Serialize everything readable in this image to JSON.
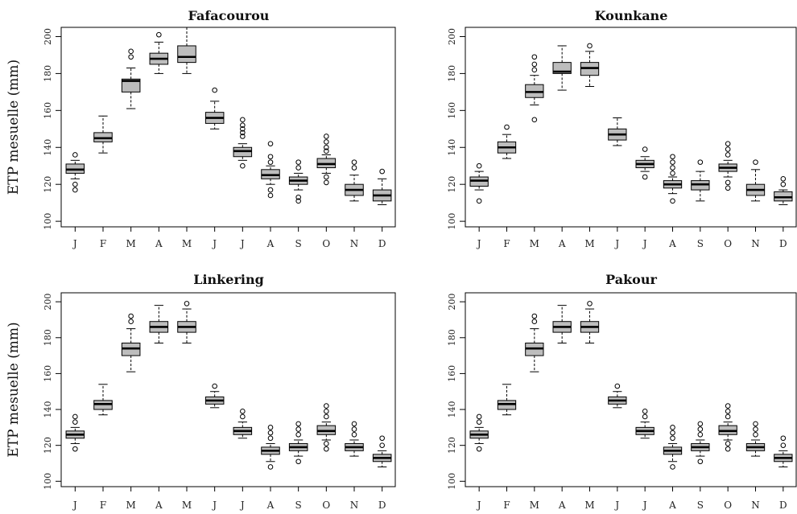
{
  "chart_data": [
    {
      "type": "box",
      "title": "Fafacourou",
      "ylabel": "ETP mesuelle (mm)",
      "ylim": [
        97,
        205
      ],
      "yticks": [
        100,
        120,
        140,
        160,
        180,
        200
      ],
      "categories": [
        "J",
        "F",
        "M",
        "A",
        "M",
        "J",
        "J",
        "A",
        "S",
        "O",
        "N",
        "D"
      ],
      "boxes": [
        {
          "whislo": 123,
          "q1": 126,
          "med": 128,
          "q3": 131,
          "whishi": 133,
          "fliers": [
            117,
            120,
            136
          ]
        },
        {
          "whislo": 137,
          "q1": 143,
          "med": 145,
          "q3": 148,
          "whishi": 157,
          "fliers": []
        },
        {
          "whislo": 161,
          "q1": 170,
          "med": 176,
          "q3": 177,
          "whishi": 183,
          "fliers": [
            189,
            192
          ]
        },
        {
          "whislo": 180,
          "q1": 185,
          "med": 188,
          "q3": 191,
          "whishi": 197,
          "fliers": [
            201
          ]
        },
        {
          "whislo": 180,
          "q1": 186,
          "med": 189,
          "q3": 195,
          "whishi": 205,
          "fliers": []
        },
        {
          "whislo": 150,
          "q1": 153,
          "med": 156,
          "q3": 159,
          "whishi": 165,
          "fliers": [
            171
          ]
        },
        {
          "whislo": 133,
          "q1": 135,
          "med": 138,
          "q3": 140,
          "whishi": 142,
          "fliers": [
            130,
            146,
            148,
            150,
            152,
            155
          ]
        },
        {
          "whislo": 120,
          "q1": 123,
          "med": 125,
          "q3": 128,
          "whishi": 130,
          "fliers": [
            114,
            117,
            132,
            135,
            142
          ]
        },
        {
          "whislo": 117,
          "q1": 120,
          "med": 122,
          "q3": 124,
          "whishi": 126,
          "fliers": [
            111,
            113,
            129,
            132
          ]
        },
        {
          "whislo": 126,
          "q1": 129,
          "med": 131,
          "q3": 134,
          "whishi": 136,
          "fliers": [
            121,
            124,
            138,
            140,
            143,
            146
          ]
        },
        {
          "whislo": 111,
          "q1": 114,
          "med": 117,
          "q3": 120,
          "whishi": 125,
          "fliers": [
            129,
            132
          ]
        },
        {
          "whislo": 109,
          "q1": 111,
          "med": 114,
          "q3": 117,
          "whishi": 123,
          "fliers": [
            127
          ]
        }
      ]
    },
    {
      "type": "box",
      "title": "Kounkane",
      "ylabel": "",
      "ylim": [
        97,
        205
      ],
      "yticks": [
        100,
        120,
        140,
        160,
        180,
        200
      ],
      "categories": [
        "J",
        "F",
        "M",
        "A",
        "M",
        "J",
        "J",
        "A",
        "S",
        "O",
        "N",
        "D"
      ],
      "boxes": [
        {
          "whislo": 117,
          "q1": 119,
          "med": 122,
          "q3": 124,
          "whishi": 127,
          "fliers": [
            111,
            130
          ]
        },
        {
          "whislo": 134,
          "q1": 137,
          "med": 140,
          "q3": 143,
          "whishi": 147,
          "fliers": [
            151
          ]
        },
        {
          "whislo": 163,
          "q1": 167,
          "med": 170,
          "q3": 174,
          "whishi": 179,
          "fliers": [
            155,
            182,
            185,
            189
          ]
        },
        {
          "whislo": 171,
          "q1": 180,
          "med": 181,
          "q3": 186,
          "whishi": 195,
          "fliers": []
        },
        {
          "whislo": 173,
          "q1": 179,
          "med": 183,
          "q3": 186,
          "whishi": 192,
          "fliers": [
            195
          ]
        },
        {
          "whislo": 141,
          "q1": 144,
          "med": 147,
          "q3": 150,
          "whishi": 156,
          "fliers": []
        },
        {
          "whislo": 127,
          "q1": 129,
          "med": 131,
          "q3": 133,
          "whishi": 135,
          "fliers": [
            124,
            139
          ]
        },
        {
          "whislo": 115,
          "q1": 118,
          "med": 120,
          "q3": 122,
          "whishi": 124,
          "fliers": [
            111,
            126,
            129,
            132,
            135
          ]
        },
        {
          "whislo": 111,
          "q1": 117,
          "med": 120,
          "q3": 122,
          "whishi": 127,
          "fliers": [
            132
          ]
        },
        {
          "whislo": 124,
          "q1": 127,
          "med": 129,
          "q3": 131,
          "whishi": 133,
          "fliers": [
            118,
            121,
            136,
            139,
            142
          ]
        },
        {
          "whislo": 111,
          "q1": 114,
          "med": 117,
          "q3": 120,
          "whishi": 128,
          "fliers": [
            132
          ]
        },
        {
          "whislo": 109,
          "q1": 111,
          "med": 113,
          "q3": 116,
          "whishi": 117,
          "fliers": [
            120,
            123
          ]
        }
      ]
    },
    {
      "type": "box",
      "title": "Linkering",
      "ylabel": "ETP mesuelle (mm)",
      "ylim": [
        97,
        205
      ],
      "yticks": [
        100,
        120,
        140,
        160,
        180,
        200
      ],
      "categories": [
        "J",
        "F",
        "M",
        "A",
        "M",
        "J",
        "J",
        "A",
        "S",
        "O",
        "N",
        "D"
      ],
      "boxes": [
        {
          "whislo": 121,
          "q1": 124,
          "med": 126,
          "q3": 128,
          "whishi": 130,
          "fliers": [
            118,
            133,
            136
          ]
        },
        {
          "whislo": 137,
          "q1": 140,
          "med": 143,
          "q3": 145,
          "whishi": 154,
          "fliers": []
        },
        {
          "whislo": 161,
          "q1": 170,
          "med": 174,
          "q3": 177,
          "whishi": 185,
          "fliers": [
            189,
            192
          ]
        },
        {
          "whislo": 177,
          "q1": 183,
          "med": 186,
          "q3": 189,
          "whishi": 198,
          "fliers": []
        },
        {
          "whislo": 177,
          "q1": 183,
          "med": 186,
          "q3": 189,
          "whishi": 196,
          "fliers": [
            199
          ]
        },
        {
          "whislo": 141,
          "q1": 143,
          "med": 145,
          "q3": 147,
          "whishi": 150,
          "fliers": [
            153
          ]
        },
        {
          "whislo": 124,
          "q1": 126,
          "med": 128,
          "q3": 130,
          "whishi": 133,
          "fliers": [
            136,
            139
          ]
        },
        {
          "whislo": 111,
          "q1": 115,
          "med": 117,
          "q3": 119,
          "whishi": 121,
          "fliers": [
            108,
            124,
            127,
            130
          ]
        },
        {
          "whislo": 114,
          "q1": 117,
          "med": 119,
          "q3": 121,
          "whishi": 123,
          "fliers": [
            111,
            126,
            129,
            132
          ]
        },
        {
          "whislo": 123,
          "q1": 126,
          "med": 128,
          "q3": 131,
          "whishi": 133,
          "fliers": [
            118,
            121,
            136,
            139,
            142
          ]
        },
        {
          "whislo": 114,
          "q1": 117,
          "med": 119,
          "q3": 121,
          "whishi": 123,
          "fliers": [
            126,
            129,
            132
          ]
        },
        {
          "whislo": 108,
          "q1": 111,
          "med": 113,
          "q3": 115,
          "whishi": 117,
          "fliers": [
            120,
            124
          ]
        }
      ]
    },
    {
      "type": "box",
      "title": "Pakour",
      "ylabel": "",
      "ylim": [
        97,
        205
      ],
      "yticks": [
        100,
        120,
        140,
        160,
        180,
        200
      ],
      "categories": [
        "J",
        "F",
        "M",
        "A",
        "M",
        "J",
        "J",
        "A",
        "S",
        "O",
        "N",
        "D"
      ],
      "boxes": [
        {
          "whislo": 121,
          "q1": 124,
          "med": 126,
          "q3": 128,
          "whishi": 130,
          "fliers": [
            118,
            133,
            136
          ]
        },
        {
          "whislo": 137,
          "q1": 140,
          "med": 143,
          "q3": 145,
          "whishi": 154,
          "fliers": []
        },
        {
          "whislo": 161,
          "q1": 170,
          "med": 174,
          "q3": 177,
          "whishi": 185,
          "fliers": [
            189,
            192
          ]
        },
        {
          "whislo": 177,
          "q1": 183,
          "med": 186,
          "q3": 189,
          "whishi": 198,
          "fliers": []
        },
        {
          "whislo": 177,
          "q1": 183,
          "med": 186,
          "q3": 189,
          "whishi": 196,
          "fliers": [
            199
          ]
        },
        {
          "whislo": 141,
          "q1": 143,
          "med": 145,
          "q3": 147,
          "whishi": 150,
          "fliers": [
            153
          ]
        },
        {
          "whislo": 124,
          "q1": 126,
          "med": 128,
          "q3": 130,
          "whishi": 133,
          "fliers": [
            136,
            139
          ]
        },
        {
          "whislo": 111,
          "q1": 115,
          "med": 117,
          "q3": 119,
          "whishi": 121,
          "fliers": [
            108,
            124,
            127,
            130
          ]
        },
        {
          "whislo": 114,
          "q1": 117,
          "med": 119,
          "q3": 121,
          "whishi": 123,
          "fliers": [
            111,
            126,
            129,
            132
          ]
        },
        {
          "whislo": 123,
          "q1": 126,
          "med": 128,
          "q3": 131,
          "whishi": 133,
          "fliers": [
            118,
            121,
            136,
            139,
            142
          ]
        },
        {
          "whislo": 114,
          "q1": 117,
          "med": 119,
          "q3": 121,
          "whishi": 123,
          "fliers": [
            126,
            129,
            132
          ]
        },
        {
          "whislo": 108,
          "q1": 111,
          "med": 113,
          "q3": 115,
          "whishi": 117,
          "fliers": [
            120,
            124
          ]
        }
      ]
    }
  ],
  "colors": {
    "box_fill": "#bdbdbd",
    "stroke": "#000000",
    "background": "#ffffff"
  }
}
